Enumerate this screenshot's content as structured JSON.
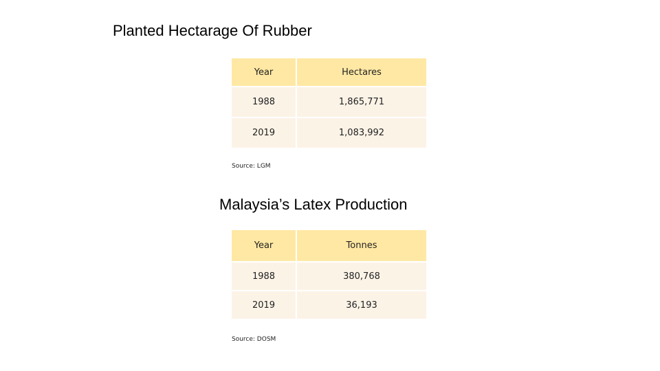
{
  "section1": {
    "title": "Planted Hectarage Of Rubber",
    "table": {
      "headers": [
        "Year",
        "Hectares"
      ],
      "rows": [
        [
          "1988",
          "1,865,771"
        ],
        [
          "2019",
          "1,083,992"
        ]
      ]
    },
    "source": "Source: LGM"
  },
  "section2": {
    "title": "Malaysia’s Latex Production",
    "table": {
      "headers": [
        "Year",
        "Tonnes"
      ],
      "rows": [
        [
          "1988",
          "380,768"
        ],
        [
          "2019",
          "36,193"
        ]
      ]
    },
    "source": "Source: DOSM"
  },
  "colors": {
    "header_fill": "#ffe8a3",
    "row_fill": "#fcf3e7"
  }
}
